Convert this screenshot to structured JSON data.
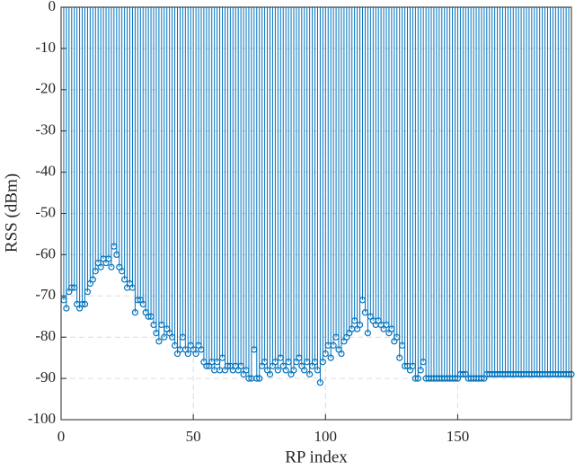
{
  "chart_data": {
    "type": "stem",
    "xlabel": "RP index",
    "ylabel": "RSS (dBm)",
    "color": "#0072BD",
    "grid": true,
    "xlim": [
      0,
      193
    ],
    "xticks": [
      0,
      50,
      100,
      150
    ],
    "ylim": [
      -100,
      0
    ],
    "yticks": [
      0,
      -10,
      -20,
      -30,
      -40,
      -50,
      -60,
      -70,
      -80,
      -90,
      -100
    ],
    "x": [
      1,
      2,
      3,
      4,
      5,
      6,
      7,
      8,
      9,
      10,
      11,
      12,
      13,
      14,
      15,
      16,
      17,
      18,
      19,
      20,
      21,
      22,
      23,
      24,
      25,
      26,
      27,
      28,
      29,
      30,
      31,
      32,
      33,
      34,
      35,
      36,
      37,
      38,
      39,
      40,
      41,
      42,
      43,
      44,
      45,
      46,
      47,
      48,
      49,
      50,
      51,
      52,
      53,
      54,
      55,
      56,
      57,
      58,
      59,
      60,
      61,
      62,
      63,
      64,
      65,
      66,
      67,
      68,
      69,
      70,
      71,
      72,
      73,
      74,
      75,
      76,
      77,
      78,
      79,
      80,
      81,
      82,
      83,
      84,
      85,
      86,
      87,
      88,
      89,
      90,
      91,
      92,
      93,
      94,
      95,
      96,
      97,
      98,
      99,
      100,
      101,
      102,
      103,
      104,
      105,
      106,
      107,
      108,
      109,
      110,
      111,
      112,
      113,
      114,
      115,
      116,
      117,
      118,
      119,
      120,
      121,
      122,
      123,
      124,
      125,
      126,
      127,
      128,
      129,
      130,
      131,
      132,
      133,
      134,
      135,
      136,
      137,
      138,
      139,
      140,
      141,
      142,
      143,
      144,
      145,
      146,
      147,
      148,
      149,
      150,
      151,
      152,
      153,
      154,
      155,
      156,
      157,
      158,
      159,
      160,
      161,
      162,
      163,
      164,
      165,
      166,
      167,
      168,
      169,
      170,
      171,
      172,
      173,
      174,
      175,
      176,
      177,
      178,
      179,
      180,
      181,
      182,
      183,
      184,
      185,
      186,
      187,
      188,
      189,
      190,
      191,
      192,
      193
    ],
    "values": [
      -71,
      -73,
      -69,
      -68,
      -68,
      -72,
      -73,
      -72,
      -72,
      -69,
      -67,
      -66,
      -64,
      -62,
      -63,
      -61,
      -62,
      -61,
      -63,
      -58,
      -60,
      -63,
      -64,
      -66,
      -68,
      -67,
      -68,
      -74,
      -71,
      -71,
      -72,
      -74,
      -75,
      -75,
      -77,
      -79,
      -81,
      -77,
      -80,
      -78,
      -79,
      -80,
      -82,
      -84,
      -83,
      -80,
      -83,
      -84,
      -82,
      -83,
      -84,
      -82,
      -83,
      -86,
      -87,
      -87,
      -86,
      -88,
      -86,
      -88,
      -85,
      -88,
      -87,
      -87,
      -88,
      -87,
      -88,
      -87,
      -89,
      -88,
      -90,
      -90,
      -83,
      -90,
      -90,
      -87,
      -86,
      -88,
      -89,
      -87,
      -86,
      -88,
      -85,
      -87,
      -88,
      -86,
      -89,
      -88,
      -86,
      -85,
      -87,
      -88,
      -86,
      -89,
      -87,
      -86,
      -88,
      -91,
      -86,
      -84,
      -82,
      -85,
      -82,
      -80,
      -83,
      -84,
      -81,
      -80,
      -79,
      -78,
      -76,
      -78,
      -77,
      -71,
      -74,
      -79,
      -75,
      -76,
      -77,
      -76,
      -77,
      -78,
      -77,
      -79,
      -78,
      -81,
      -80,
      -85,
      -82,
      -87,
      -87,
      -88,
      -87,
      -90,
      -90,
      -88,
      -86,
      -90,
      -90,
      -90,
      -90,
      -90,
      -90,
      -90,
      -90,
      -90,
      -90,
      -90,
      -90,
      -90,
      -89,
      -89,
      -89,
      -90,
      -90,
      -90,
      -90,
      -90,
      -90,
      -90,
      -89,
      -89,
      -89,
      -89,
      -89,
      -89,
      -89,
      -89,
      -89,
      -89,
      -89,
      -89,
      -89,
      -89,
      -89,
      -89,
      -89,
      -89,
      -89,
      -89,
      -89,
      -89,
      -89,
      -89,
      -89,
      -89,
      -89,
      -89,
      -89,
      -89,
      -89,
      -89,
      -89
    ]
  }
}
